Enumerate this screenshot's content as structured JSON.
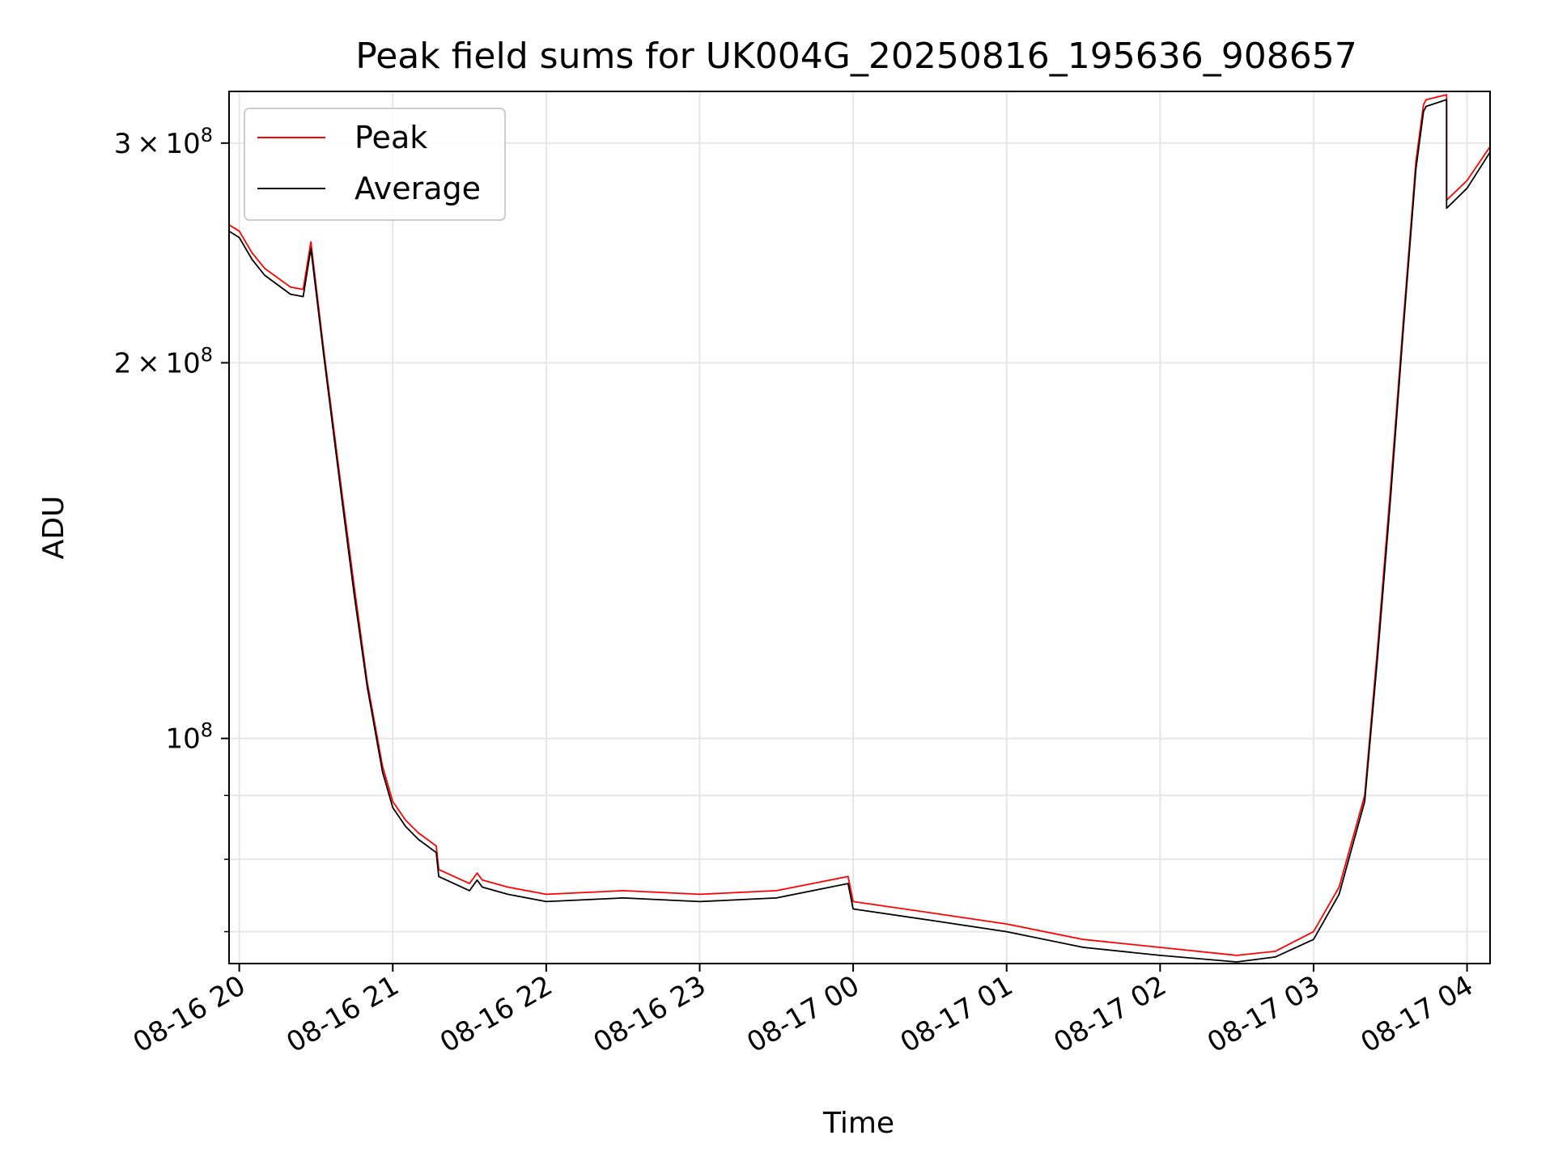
{
  "chart_data": {
    "type": "line",
    "title": "Peak field sums for UK004G_20250816_195636_908657",
    "xlabel": "Time",
    "ylabel": "ADU",
    "x_axis": {
      "kind": "datetime",
      "range": [
        "2025-08-16 19:56",
        "2025-08-17 04:09"
      ],
      "tick_values": [
        "2025-08-16 20:00",
        "2025-08-16 21:00",
        "2025-08-16 22:00",
        "2025-08-16 23:00",
        "2025-08-17 00:00",
        "2025-08-17 01:00",
        "2025-08-17 02:00",
        "2025-08-17 03:00",
        "2025-08-17 04:00"
      ],
      "tick_labels": [
        "08-16 20",
        "08-16 21",
        "08-16 22",
        "08-16 23",
        "08-17 00",
        "08-17 01",
        "08-17 02",
        "08-17 03",
        "08-17 04"
      ]
    },
    "y_axis": {
      "scale": "log",
      "range": [
        66000000,
        330000000
      ],
      "major_ticks": [
        {
          "value": 100000000,
          "base": "10",
          "exp": "8",
          "coef": ""
        },
        {
          "value": 200000000,
          "base": "10",
          "exp": "8",
          "coef": "2"
        },
        {
          "value": 300000000,
          "base": "10",
          "exp": "8",
          "coef": "3"
        }
      ],
      "minor_ticks": [
        70000000,
        80000000,
        90000000
      ]
    },
    "grid": true,
    "legend": {
      "placement": "upper-left",
      "entries": [
        {
          "label": "Peak",
          "color": "#ff0000"
        },
        {
          "label": "Average",
          "color": "#000000"
        }
      ]
    },
    "series": [
      {
        "name": "Peak",
        "color": "#ff0000",
        "x": [
          "2025-08-16 19:56",
          "2025-08-16 20:00",
          "2025-08-16 20:05",
          "2025-08-16 20:10",
          "2025-08-16 20:20",
          "2025-08-16 20:25",
          "2025-08-16 20:28",
          "2025-08-16 20:33",
          "2025-08-16 20:40",
          "2025-08-16 20:45",
          "2025-08-16 20:50",
          "2025-08-16 20:56",
          "2025-08-16 21:00",
          "2025-08-16 21:05",
          "2025-08-16 21:10",
          "2025-08-16 21:17",
          "2025-08-16 21:18",
          "2025-08-16 21:30",
          "2025-08-16 21:33",
          "2025-08-16 21:35",
          "2025-08-16 21:45",
          "2025-08-16 22:00",
          "2025-08-16 22:30",
          "2025-08-16 23:00",
          "2025-08-16 23:30",
          "2025-08-16 23:58",
          "2025-08-17 00:00",
          "2025-08-17 00:30",
          "2025-08-17 01:00",
          "2025-08-17 01:30",
          "2025-08-17 02:00",
          "2025-08-17 02:30",
          "2025-08-17 02:45",
          "2025-08-17 03:00",
          "2025-08-17 03:10",
          "2025-08-17 03:20",
          "2025-08-17 03:25",
          "2025-08-17 03:30",
          "2025-08-17 03:35",
          "2025-08-17 03:40",
          "2025-08-17 03:43",
          "2025-08-17 03:44",
          "2025-08-17 03:52",
          "2025-08-17 03:52",
          "2025-08-17 04:00",
          "2025-08-17 04:09"
        ],
        "values": [
          258000000,
          255000000,
          245000000,
          238000000,
          230000000,
          229000000,
          250000000,
          205000000,
          158000000,
          132000000,
          111000000,
          95000000,
          89000000,
          86000000,
          84000000,
          82000000,
          78500000,
          76500000,
          78000000,
          77000000,
          76000000,
          75000000,
          75500000,
          75000000,
          75500000,
          77500000,
          74000000,
          72500000,
          71000000,
          69000000,
          68000000,
          67000000,
          67500000,
          70000000,
          76000000,
          90000000,
          118000000,
          158000000,
          215000000,
          290000000,
          322000000,
          325000000,
          328000000,
          270000000,
          280000000,
          298000000
        ]
      },
      {
        "name": "Average",
        "color": "#000000",
        "x": [
          "2025-08-16 19:56",
          "2025-08-16 20:00",
          "2025-08-16 20:05",
          "2025-08-16 20:10",
          "2025-08-16 20:20",
          "2025-08-16 20:25",
          "2025-08-16 20:28",
          "2025-08-16 20:33",
          "2025-08-16 20:40",
          "2025-08-16 20:45",
          "2025-08-16 20:50",
          "2025-08-16 20:56",
          "2025-08-16 21:00",
          "2025-08-16 21:05",
          "2025-08-16 21:10",
          "2025-08-16 21:17",
          "2025-08-16 21:18",
          "2025-08-16 21:30",
          "2025-08-16 21:33",
          "2025-08-16 21:35",
          "2025-08-16 21:45",
          "2025-08-16 22:00",
          "2025-08-16 22:30",
          "2025-08-16 23:00",
          "2025-08-16 23:30",
          "2025-08-16 23:58",
          "2025-08-17 00:00",
          "2025-08-17 00:30",
          "2025-08-17 01:00",
          "2025-08-17 01:30",
          "2025-08-17 02:00",
          "2025-08-17 02:30",
          "2025-08-17 02:45",
          "2025-08-17 03:00",
          "2025-08-17 03:10",
          "2025-08-17 03:20",
          "2025-08-17 03:25",
          "2025-08-17 03:30",
          "2025-08-17 03:35",
          "2025-08-17 03:40",
          "2025-08-17 03:43",
          "2025-08-17 03:44",
          "2025-08-17 03:52",
          "2025-08-17 03:52",
          "2025-08-17 04:00",
          "2025-08-17 04:09"
        ],
        "values": [
          255000000,
          252000000,
          242000000,
          235000000,
          227000000,
          226000000,
          247000000,
          203000000,
          156000000,
          130000000,
          110000000,
          94000000,
          88000000,
          85000000,
          83000000,
          81000000,
          77500000,
          75500000,
          77000000,
          76000000,
          75000000,
          74000000,
          74500000,
          74000000,
          74500000,
          76500000,
          73000000,
          71500000,
          70000000,
          68000000,
          67000000,
          66200000,
          66800000,
          69000000,
          75000000,
          89000000,
          116000000,
          155000000,
          212000000,
          286000000,
          318000000,
          321000000,
          325000000,
          266000000,
          276000000,
          295000000
        ]
      }
    ]
  }
}
